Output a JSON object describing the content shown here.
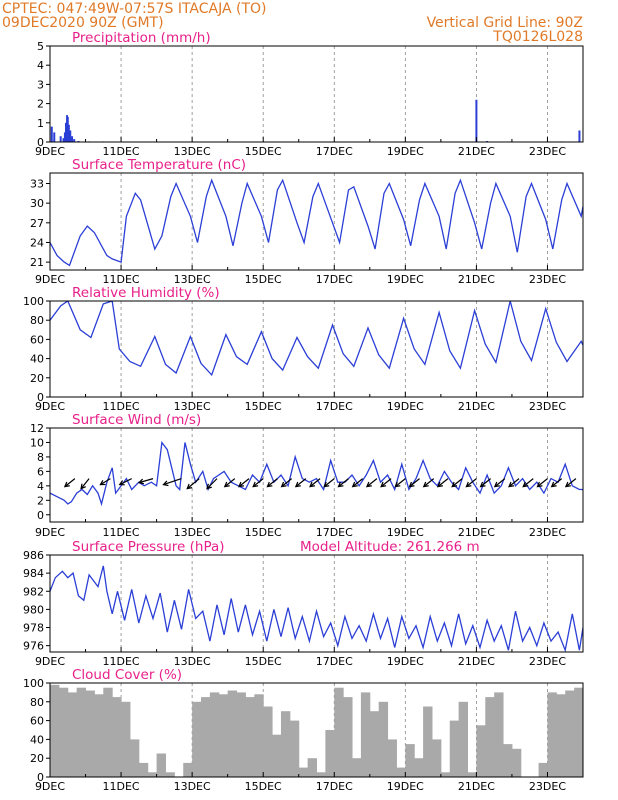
{
  "header": {
    "left_line1": "CPTEC:   047:49W-07:57S  ITACAJA (TO)",
    "left_line2": "09DEC2020 90Z (GMT)",
    "right_line1": "Vertical Grid Line: 90Z",
    "right_line2": "TQ0126L028"
  },
  "colors": {
    "series": "#2b3fd6",
    "title": "#e8208a",
    "header": "#e07a28",
    "cloud": "#a9a9a9"
  },
  "x_tick_labels": [
    "9DEC",
    "11DEC",
    "13DEC",
    "15DEC",
    "17DEC",
    "19DEC",
    "21DEC",
    "23DEC"
  ],
  "chart_data": [
    {
      "id": "precipitation",
      "type": "bar",
      "title": "Precipitation (mm/h)",
      "ylim": [
        0,
        5
      ],
      "yticks": [
        0,
        1,
        2,
        3,
        4,
        5
      ],
      "xlim": [
        0,
        15
      ],
      "x": [
        0.05,
        0.12,
        0.3,
        0.38,
        0.42,
        0.45,
        0.48,
        0.5,
        0.53,
        0.57,
        0.62,
        0.68,
        0.8,
        1.1,
        1.5,
        12.0,
        12.3,
        14.4,
        14.9
      ],
      "values": [
        0.8,
        0.5,
        0.3,
        0.2,
        0.5,
        1.0,
        1.4,
        1.3,
        0.9,
        0.6,
        0.3,
        0.15,
        0.05,
        0.03,
        0.03,
        2.2,
        0.05,
        0.03,
        0.6
      ]
    },
    {
      "id": "temperature",
      "type": "line",
      "title": "Surface Temperature (nC)",
      "ylim": [
        19.8,
        34.6
      ],
      "yticks": [
        21,
        24,
        27,
        30,
        33
      ],
      "xlim": [
        0,
        15
      ],
      "x": [
        0,
        0.2,
        0.4,
        0.55,
        0.85,
        1.05,
        1.25,
        1.6,
        1.75,
        2.0,
        2.15,
        2.4,
        2.55,
        2.95,
        3.15,
        3.4,
        3.55,
        3.95,
        4.15,
        4.4,
        4.55,
        4.95,
        5.15,
        5.4,
        5.55,
        5.95,
        6.15,
        6.4,
        6.55,
        6.95,
        7.15,
        7.4,
        7.55,
        7.95,
        8.15,
        8.4,
        8.55,
        8.95,
        9.15,
        9.4,
        9.55,
        9.95,
        10.15,
        10.4,
        10.55,
        10.95,
        11.15,
        11.4,
        11.55,
        11.95,
        12.15,
        12.4,
        12.55,
        12.95,
        13.15,
        13.4,
        13.55,
        13.95,
        14.15,
        14.4,
        14.55,
        14.95,
        15.0
      ],
      "values": [
        24,
        22,
        21,
        20.5,
        25,
        26.5,
        25.5,
        22,
        21.5,
        21,
        28,
        31.5,
        30.5,
        23,
        25,
        31,
        33,
        28,
        24,
        31,
        33.5,
        28,
        23.5,
        30,
        33,
        28,
        24,
        32,
        33.5,
        27,
        24,
        31,
        33,
        27,
        24,
        32,
        32.5,
        26.5,
        23,
        31.5,
        33,
        27.5,
        23.5,
        30.5,
        33,
        28,
        23,
        31.5,
        33.5,
        27,
        23,
        30,
        33,
        28,
        22.5,
        31,
        33,
        27.5,
        23,
        30.5,
        33,
        28,
        29.5
      ]
    },
    {
      "id": "humidity",
      "type": "line",
      "title": "Relative Humidity (%)",
      "ylim": [
        0,
        100
      ],
      "yticks": [
        0,
        20,
        40,
        60,
        80,
        100
      ],
      "xlim": [
        0,
        15
      ],
      "x": [
        0,
        0.3,
        0.5,
        0.85,
        1.15,
        1.5,
        1.75,
        1.95,
        2.25,
        2.55,
        2.95,
        3.25,
        3.55,
        3.95,
        4.25,
        4.55,
        4.95,
        5.25,
        5.55,
        5.95,
        6.25,
        6.55,
        6.95,
        7.25,
        7.55,
        7.95,
        8.25,
        8.55,
        8.95,
        9.25,
        9.55,
        9.95,
        10.25,
        10.55,
        10.95,
        11.25,
        11.55,
        11.95,
        12.25,
        12.55,
        12.95,
        13.25,
        13.55,
        13.95,
        14.25,
        14.55,
        14.95,
        15.0
      ],
      "values": [
        80,
        95,
        100,
        70,
        62,
        97,
        100,
        50,
        37,
        32,
        63,
        34,
        25,
        63,
        35,
        23,
        65,
        42,
        34,
        68,
        40,
        28,
        62,
        42,
        30,
        75,
        45,
        32,
        72,
        44,
        30,
        82,
        50,
        34,
        88,
        48,
        30,
        90,
        55,
        36,
        100,
        58,
        38,
        92,
        57,
        37,
        58,
        54
      ]
    },
    {
      "id": "wind",
      "type": "line",
      "title": "Surface Wind (m/s)",
      "ylim": [
        -1,
        12
      ],
      "yticks": [
        0,
        2,
        4,
        6,
        8,
        10,
        12
      ],
      "xlim": [
        0,
        15
      ],
      "x": [
        0,
        0.2,
        0.4,
        0.5,
        0.6,
        0.75,
        0.9,
        1.05,
        1.2,
        1.35,
        1.45,
        1.6,
        1.75,
        1.85,
        2.0,
        2.15,
        2.3,
        2.5,
        2.65,
        2.85,
        3.0,
        3.15,
        3.3,
        3.55,
        3.65,
        3.8,
        3.95,
        4.1,
        4.3,
        4.45,
        4.6,
        4.75,
        4.9,
        5.1,
        5.3,
        5.5,
        5.7,
        5.9,
        6.1,
        6.3,
        6.5,
        6.7,
        6.9,
        7.1,
        7.3,
        7.5,
        7.7,
        7.9,
        8.1,
        8.3,
        8.5,
        8.7,
        8.9,
        9.1,
        9.3,
        9.5,
        9.7,
        9.9,
        10.1,
        10.3,
        10.5,
        10.7,
        10.9,
        11.1,
        11.3,
        11.5,
        11.7,
        11.9,
        12.1,
        12.3,
        12.5,
        12.7,
        12.9,
        13.1,
        13.3,
        13.5,
        13.7,
        13.9,
        14.1,
        14.3,
        14.5,
        14.7,
        14.9,
        15.0
      ],
      "values": [
        3,
        2.5,
        2.0,
        1.5,
        1.8,
        3.0,
        3.5,
        2.8,
        4.0,
        3.0,
        1.5,
        4.5,
        6.5,
        3.0,
        4.0,
        5.0,
        3.5,
        4.5,
        4.0,
        4.5,
        4.0,
        10.0,
        9.0,
        4.0,
        3.5,
        10.0,
        7.0,
        4.5,
        6.0,
        3.5,
        5.0,
        5.5,
        6.0,
        4.5,
        4.0,
        3.5,
        5.5,
        4.5,
        7.0,
        4.5,
        5.5,
        4.0,
        8.0,
        5.0,
        4.5,
        5.0,
        3.5,
        7.5,
        4.5,
        4.5,
        5.5,
        4.0,
        5.5,
        7.5,
        4.5,
        5.5,
        3.5,
        7.0,
        3.5,
        5.0,
        7.5,
        5.0,
        4.0,
        6.0,
        4.5,
        3.5,
        6.5,
        4.5,
        3.0,
        5.5,
        3.0,
        4.0,
        6.5,
        4.0,
        5.0,
        3.5,
        4.5,
        3.0,
        5.0,
        4.5,
        7.0,
        4.0,
        3.5,
        3.5
      ]
    },
    {
      "id": "pressure",
      "type": "line",
      "title": "Surface Pressure (hPa)",
      "annotation": "Model Altitude: 261.266 m",
      "ylim": [
        975.3,
        986
      ],
      "yticks": [
        976,
        978,
        980,
        982,
        984,
        986
      ],
      "xlim": [
        0,
        15
      ],
      "x": [
        0,
        0.15,
        0.35,
        0.5,
        0.65,
        0.8,
        0.95,
        1.1,
        1.35,
        1.5,
        1.6,
        1.75,
        1.9,
        2.1,
        2.3,
        2.5,
        2.7,
        2.9,
        3.1,
        3.3,
        3.5,
        3.7,
        3.9,
        4.1,
        4.3,
        4.5,
        4.7,
        4.9,
        5.1,
        5.3,
        5.5,
        5.7,
        5.9,
        6.1,
        6.3,
        6.5,
        6.7,
        6.9,
        7.1,
        7.3,
        7.5,
        7.7,
        7.9,
        8.1,
        8.3,
        8.5,
        8.7,
        8.9,
        9.1,
        9.3,
        9.5,
        9.7,
        9.9,
        10.1,
        10.3,
        10.5,
        10.7,
        10.9,
        11.1,
        11.3,
        11.5,
        11.7,
        11.9,
        12.1,
        12.3,
        12.5,
        12.7,
        12.9,
        13.1,
        13.3,
        13.5,
        13.7,
        13.9,
        14.1,
        14.3,
        14.5,
        14.7,
        14.9,
        15.0
      ],
      "values": [
        982,
        983.5,
        984.2,
        983.5,
        984,
        981.5,
        981,
        983.8,
        982.5,
        984.8,
        982,
        979.5,
        982,
        978.8,
        982.2,
        978.5,
        981.5,
        979,
        981.8,
        977.5,
        981,
        977.8,
        982.2,
        979,
        979.8,
        976.5,
        980.5,
        977.2,
        981.2,
        977.5,
        980.5,
        977.2,
        979.8,
        976.5,
        980,
        977,
        980.2,
        976.8,
        979.2,
        976.5,
        979.8,
        977,
        978.5,
        976,
        979.2,
        976.8,
        978.2,
        976.5,
        979.5,
        976.8,
        979,
        975.8,
        979.2,
        976.8,
        978.2,
        975.8,
        979.2,
        976.5,
        978.5,
        976,
        979.5,
        976.2,
        978.2,
        975.8,
        978.8,
        976.5,
        978.2,
        975.5,
        979.8,
        976.5,
        978,
        976,
        978.5,
        976.5,
        977.5,
        975.5,
        979.5,
        975.5,
        978
      ]
    },
    {
      "id": "cloud",
      "type": "bar",
      "title": "Cloud Cover (%)",
      "ylim": [
        0,
        100
      ],
      "yticks": [
        0,
        20,
        40,
        60,
        80,
        100
      ],
      "xlim": [
        0,
        15
      ],
      "x": [
        0,
        0.25,
        0.5,
        0.75,
        1.0,
        1.25,
        1.5,
        1.75,
        2.0,
        2.25,
        2.5,
        2.75,
        3.0,
        3.25,
        3.5,
        3.75,
        4.0,
        4.25,
        4.5,
        4.75,
        5.0,
        5.25,
        5.5,
        5.75,
        6.0,
        6.25,
        6.5,
        6.75,
        7.0,
        7.25,
        7.5,
        7.75,
        8.0,
        8.25,
        8.5,
        8.75,
        9.0,
        9.25,
        9.5,
        9.75,
        10.0,
        10.25,
        10.5,
        10.75,
        11.0,
        11.25,
        11.5,
        11.75,
        12.0,
        12.25,
        12.5,
        12.75,
        13.0,
        13.25,
        13.5,
        13.75,
        14.0,
        14.25,
        14.5,
        14.75
      ],
      "values": [
        98,
        95,
        90,
        95,
        92,
        88,
        95,
        85,
        80,
        40,
        15,
        5,
        25,
        5,
        0,
        15,
        80,
        85,
        90,
        88,
        92,
        90,
        85,
        88,
        75,
        45,
        70,
        60,
        10,
        20,
        5,
        50,
        95,
        85,
        20,
        90,
        70,
        80,
        40,
        10,
        35,
        20,
        75,
        40,
        5,
        60,
        80,
        5,
        55,
        85,
        90,
        35,
        30,
        0,
        0,
        15,
        90,
        88,
        92,
        95
      ]
    }
  ]
}
